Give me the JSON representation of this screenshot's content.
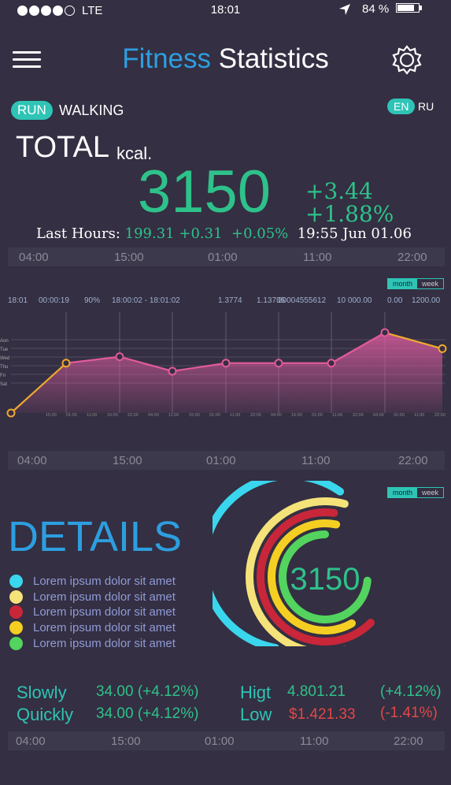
{
  "status": {
    "carrier": "LTE",
    "time": "18:01",
    "battery": "84 %",
    "battery_level": 0.84
  },
  "header": {
    "title_part1": "Fitness",
    "title_part2": "Statistics"
  },
  "modes": {
    "run": "RUN",
    "walking": "WALKING"
  },
  "languages": {
    "en": "EN",
    "ru": "RU"
  },
  "summary": {
    "total_label": "TOTAL",
    "unit": "kcal.",
    "value": "3150",
    "delta_abs": "+3.44",
    "delta_pct": "+1.88%",
    "last_label": "Last Hours:",
    "last_value": "199.31 +0.31",
    "last_pct": "+0.05%",
    "last_time": "19:55 Jun 01.06"
  },
  "time_bar": [
    "04:00",
    "15:00",
    "01:00",
    "11:00",
    "22:00"
  ],
  "toggle": {
    "month": "month",
    "week": "week"
  },
  "stats_row": [
    "18:01",
    "00:00:19",
    "90%",
    "18:00:02 - 18:01:02",
    "1.3774",
    "1.13786",
    "20004555612",
    "10 000.00",
    "0.00",
    "1200.00"
  ],
  "chart_data": {
    "type": "area",
    "y_tick_labels": [
      "Aon",
      "Tue",
      "Wed",
      "Thu",
      "Fri",
      "Sat"
    ],
    "x_tick_labels": [
      "15:00",
      "01:00",
      "11:00",
      "15:00",
      "22:00",
      "04:00",
      "11:00",
      "15:00",
      "01:00",
      "11:00",
      "22:00",
      "04:00",
      "15:00",
      "01:00",
      "11:00",
      "22:00",
      "04:00",
      "01:00",
      "11:00",
      "22:00"
    ],
    "points": [
      {
        "x": 0,
        "y": 0.0
      },
      {
        "x": 1,
        "y": 0.62
      },
      {
        "x": 2,
        "y": 0.7
      },
      {
        "x": 3,
        "y": 0.52
      },
      {
        "x": 4,
        "y": 0.62
      },
      {
        "x": 5,
        "y": 0.62
      },
      {
        "x": 6,
        "y": 0.62
      },
      {
        "x": 7,
        "y": 1.0
      },
      {
        "x": 8,
        "y": 0.8
      }
    ]
  },
  "details": {
    "title": "DETAILS",
    "items": [
      {
        "label": "Lorem ipsum dolor sit amet",
        "color": "#3ad6ee"
      },
      {
        "label": "Lorem ipsum dolor sit amet",
        "color": "#f5e37a"
      },
      {
        "label": "Lorem ipsum dolor sit amet",
        "color": "#c9263a"
      },
      {
        "label": "Lorem ipsum dolor sit amet",
        "color": "#f4cf22"
      },
      {
        "label": "Lorem ipsum dolor sit amet",
        "color": "#52d45e"
      }
    ],
    "ring_value": "3150"
  },
  "metrics": {
    "slowly_label": "Slowly",
    "slowly_value": "34.00 (+4.12%)",
    "quickly_label": "Quickly",
    "quickly_value": "34.00 (+4.12%)",
    "higt_label": "Higt",
    "higt_value": "4.801.21",
    "higt_pct": "(+4.12%)",
    "low_label": "Low",
    "low_value": "$1.421.33",
    "low_pct": "(-1.41%)"
  },
  "colors": {
    "accent": "#2ec4b6",
    "brand": "#2d9ee0",
    "positive": "#2ec18a",
    "negative": "#e04848",
    "background": "#342f42"
  }
}
